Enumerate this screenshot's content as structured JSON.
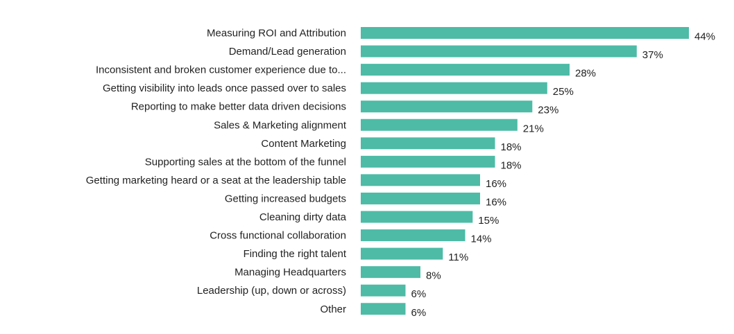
{
  "chart_data": {
    "type": "bar",
    "orientation": "horizontal",
    "title": "",
    "xlabel": "",
    "ylabel": "",
    "xlim": [
      0,
      44
    ],
    "grid": false,
    "bar_color": "#4dbba6",
    "categories": [
      "Measuring ROI and Attribution",
      "Demand/Lead generation",
      "Inconsistent and broken customer experience due to...",
      "Getting visibility into leads once passed over to sales",
      "Reporting to make better data driven decisions",
      "Sales & Marketing alignment",
      "Content Marketing",
      "Supporting sales at the bottom of the funnel",
      "Getting marketing heard or a seat at the leadership table",
      "Getting increased budgets",
      "Cleaning dirty data",
      "Cross functional collaboration",
      "Finding the right talent",
      "Managing Headquarters",
      "Leadership (up, down or across)",
      "Other"
    ],
    "values": [
      44,
      37,
      28,
      25,
      23,
      21,
      18,
      18,
      16,
      16,
      15,
      14,
      11,
      8,
      6,
      6
    ],
    "value_labels": [
      "44%",
      "37%",
      "28%",
      "25%",
      "23%",
      "21%",
      "18%",
      "18%",
      "16%",
      "16%",
      "15%",
      "14%",
      "11%",
      "8%",
      "6%",
      "6%"
    ]
  }
}
